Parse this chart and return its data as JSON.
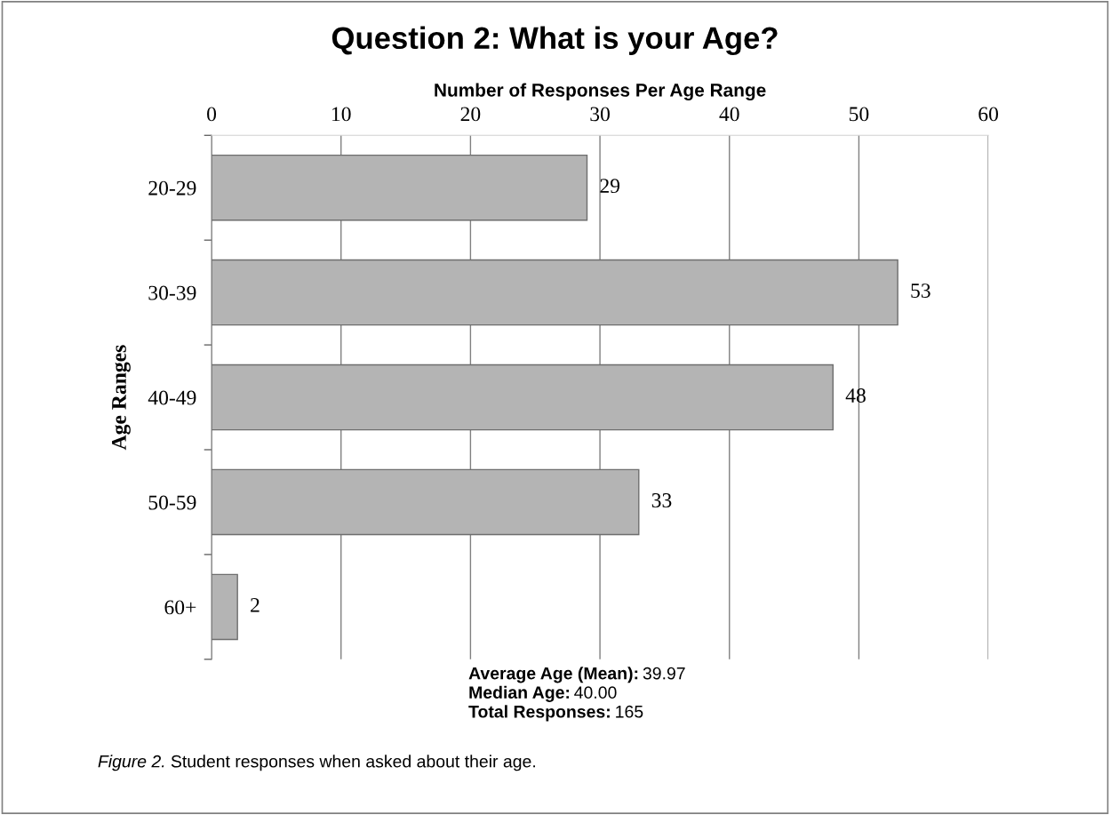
{
  "chart_data": {
    "type": "bar",
    "orientation": "horizontal",
    "title": "Question 2: What is your Age?",
    "xlabel": "Number of Responses Per Age Range",
    "ylabel": "Age Ranges",
    "categories": [
      "20-29",
      "30-39",
      "40-49",
      "50-59",
      "60+"
    ],
    "values": [
      29,
      53,
      48,
      33,
      2
    ],
    "color": "#b4b4b4",
    "xlim": [
      0,
      60
    ],
    "xticks": [
      0,
      10,
      20,
      30,
      40,
      50,
      60
    ],
    "grid": "x",
    "data_labels": true,
    "legend": false,
    "annotations": [
      "Average Age (Mean): 39.97",
      "Median Age: 40.00",
      "Total Responses: 165",
      "Figure 2. Student responses when asked about their age."
    ]
  }
}
